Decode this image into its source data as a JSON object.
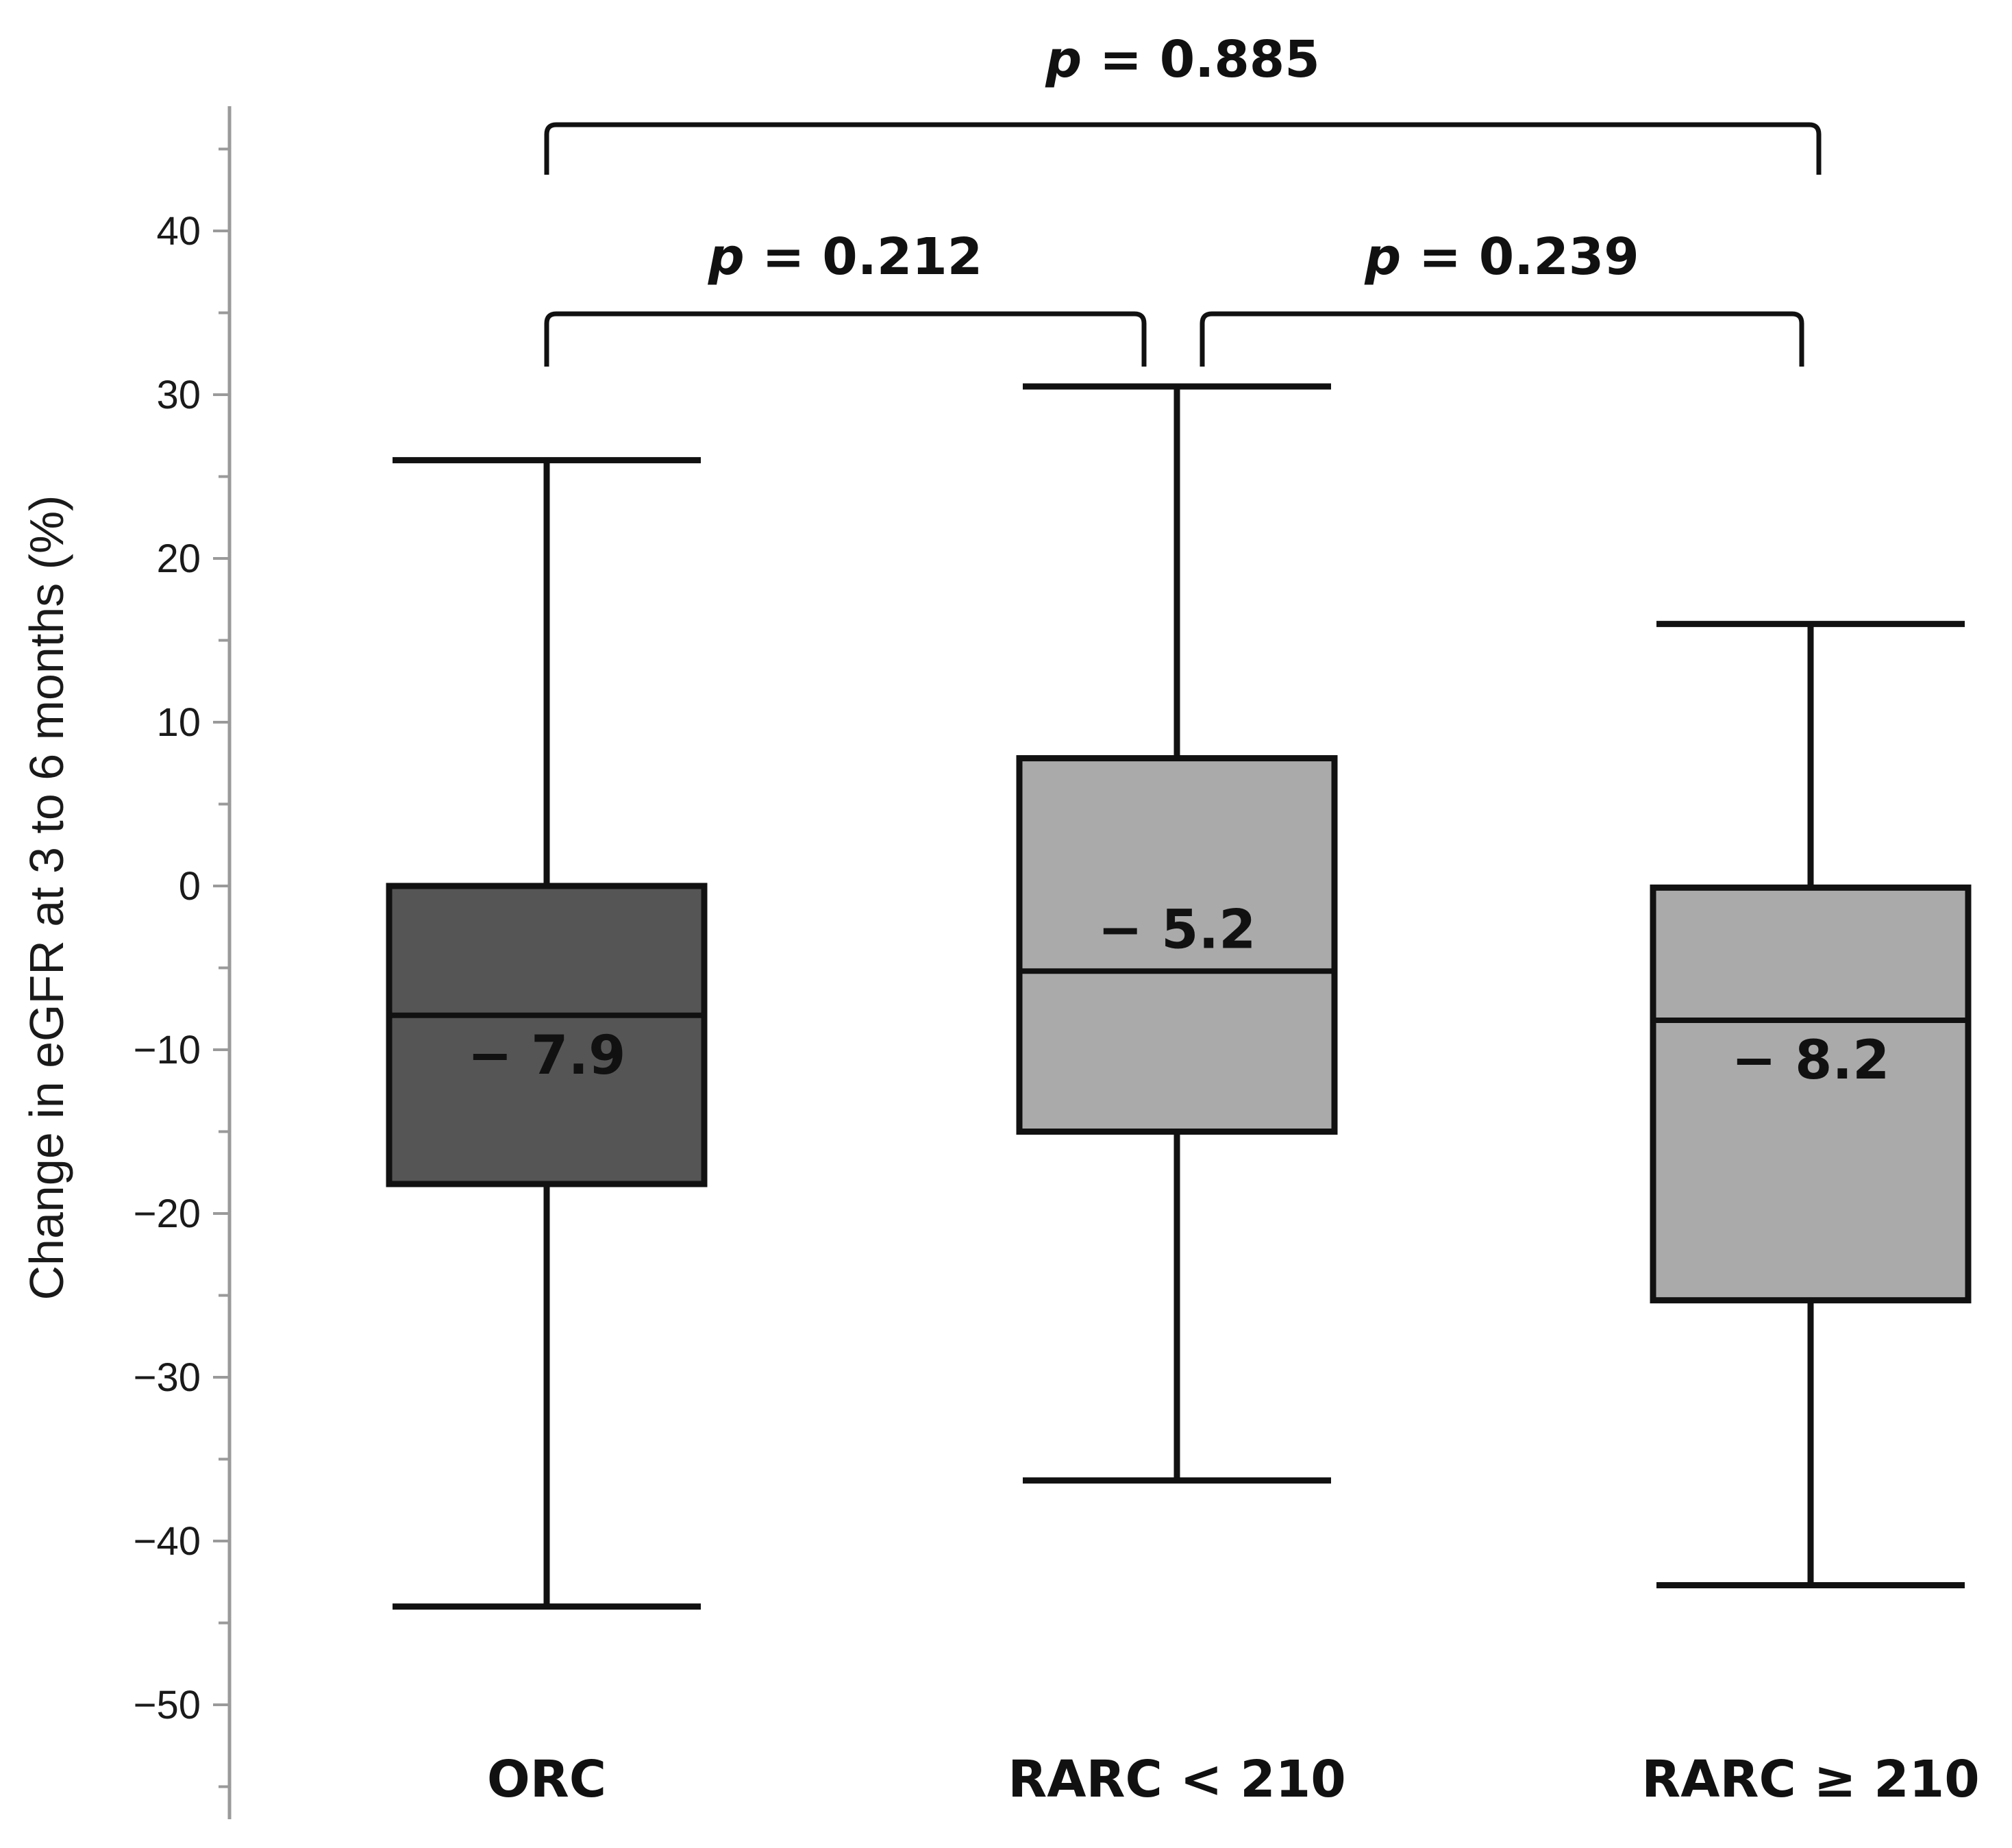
{
  "chart_data": {
    "type": "box",
    "title": "",
    "xlabel": "",
    "ylabel": "Change in eGFR at 3 to 6 months (%)",
    "ylim": [
      -55,
      48
    ],
    "yticks": [
      40,
      30,
      20,
      10,
      0,
      -10,
      -20,
      -30,
      -40,
      -50
    ],
    "ytick_labels": [
      "40",
      "30",
      "20",
      "10",
      "0",
      "−10",
      "−20",
      "−30",
      "−40",
      "−50"
    ],
    "minor_tick_step": 5,
    "grid": false,
    "categories": [
      "ORC",
      "RARC < 210",
      "RARC ≥ 210"
    ],
    "boxes": [
      {
        "name": "ORC",
        "whisker_low": -44,
        "q1": -18.2,
        "median": -7.9,
        "q3": 0,
        "whisker_high": 26,
        "median_label": "− 7.9",
        "label_position": "below",
        "fill": "#555555"
      },
      {
        "name": "RARC < 210",
        "whisker_low": -36.3,
        "q1": -15,
        "median": -5.2,
        "q3": 7.8,
        "whisker_high": 30.5,
        "median_label": "− 5.2",
        "label_position": "above",
        "fill": "#aaaaaa"
      },
      {
        "name": "RARC ≥ 210",
        "whisker_low": -42.7,
        "q1": -25.3,
        "median": -8.2,
        "q3": -0.1,
        "whisker_high": 16,
        "median_label": "− 8.2",
        "label_position": "below",
        "fill": "#aaaaaa"
      }
    ],
    "comparisons": [
      {
        "from": 0,
        "to": 2,
        "p_symbol": "p",
        "p_text": " = 0.885"
      },
      {
        "from": 0,
        "to": 1,
        "p_symbol": "p",
        "p_text": " = 0.212"
      },
      {
        "from": 1,
        "to": 2,
        "p_symbol": "p",
        "p_text": " = 0.239"
      }
    ]
  }
}
